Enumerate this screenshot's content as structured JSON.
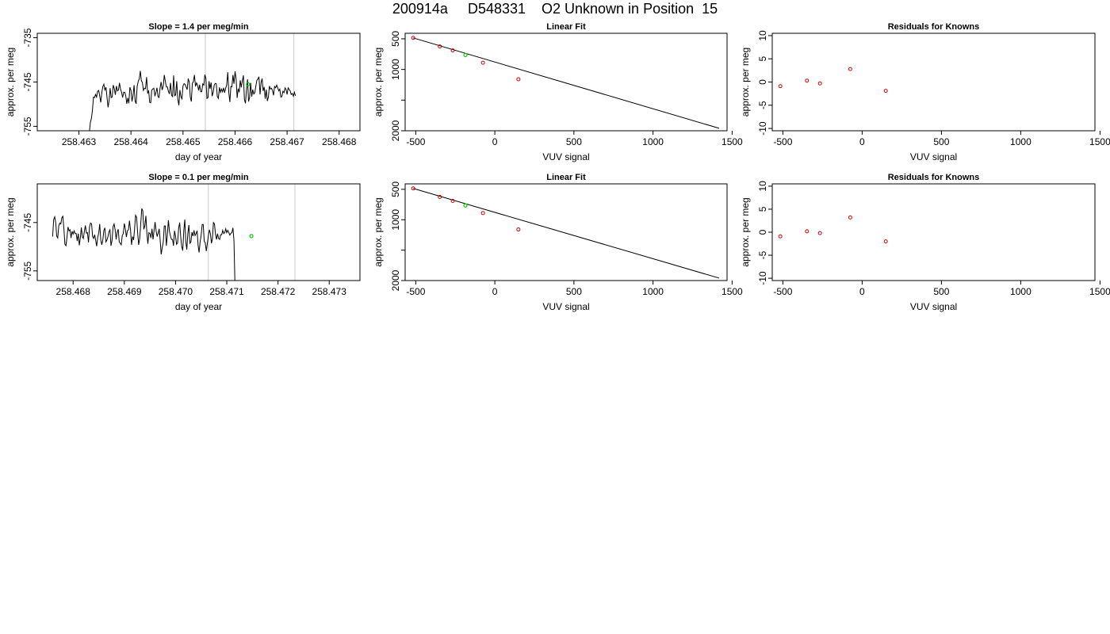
{
  "page": {
    "title": "200914a     D548331    O2 Unknown in Position  15"
  },
  "chart_data": [
    {
      "type": "line",
      "title": "Slope =  1.4  per meg/min",
      "xlabel": "day of year",
      "ylabel": "approx. per meg",
      "xlim": [
        258.4622,
        258.4684
      ],
      "ylim": [
        -756,
        -734
      ],
      "x_ticks": [
        258.463,
        258.464,
        258.465,
        258.466,
        258.467,
        258.468
      ],
      "x_tick_labels": [
        "258.463",
        "258.464",
        "258.465",
        "258.466",
        "258.467",
        "258.468"
      ],
      "y_ticks": [
        -755,
        -745,
        -735
      ],
      "y_tick_labels": [
        "-755",
        "-745",
        "-735"
      ],
      "vlines": [
        258.46543,
        258.46713
      ],
      "series": [
        {
          "x_start": 258.4632,
          "x_step": 2e-05,
          "values": [
            -756.5,
            -754.1,
            -753.2,
            -751.4,
            -748.4,
            -748.5,
            -747.8,
            -748.4,
            -747.1,
            -746.9,
            -748.2,
            -749.6,
            -747.4,
            -746.0,
            -745.5,
            -746.8,
            -746.2,
            -748.5,
            -750.7,
            -749.2,
            -746.4,
            -748.5,
            -748.4,
            -745.7,
            -746.5,
            -747.9,
            -745.9,
            -747.0,
            -746.8,
            -745.2,
            -746.6,
            -747.3,
            -748.5,
            -747.3,
            -747.3,
            -748.1,
            -749.9,
            -748.6,
            -749.8,
            -746.2,
            -746.9,
            -749.4,
            -748.0,
            -745.7,
            -749.3,
            -749.9,
            -746.0,
            -744.8,
            -744.3,
            -742.5,
            -744.7,
            -745.1,
            -746.9,
            -746.4,
            -746.5,
            -743.9,
            -747.6,
            -746.9,
            -749.6,
            -749.7,
            -746.8,
            -746.6,
            -746.4,
            -748.2,
            -747.3,
            -746.3,
            -748.3,
            -748.5,
            -746.3,
            -745.0,
            -746.8,
            -745.9,
            -743.4,
            -744.8,
            -746.1,
            -746.1,
            -747.1,
            -747.7,
            -745.2,
            -748.0,
            -748.3,
            -743.5,
            -748.1,
            -747.9,
            -744.8,
            -748.8,
            -750.3,
            -746.8,
            -748.3,
            -748.8,
            -745.9,
            -745.4,
            -745.5,
            -746.1,
            -746.7,
            -744.2,
            -745.0,
            -748.4,
            -749.4,
            -745.3,
            -744.9,
            -743.4,
            -746.0,
            -745.2,
            -745.7,
            -746.9,
            -745.6,
            -747.2,
            -747.2,
            -745.4,
            -745.7,
            -743.3,
            -744.2,
            -748.7,
            -748.5,
            -744.8,
            -746.5,
            -745.1,
            -748.2,
            -747.3,
            -745.7,
            -745.3,
            -745.4,
            -748.3,
            -748.7,
            -746.2,
            -747.3,
            -746.6,
            -747.2,
            -746.3,
            -747.4,
            -746.4,
            -745.7,
            -742.8,
            -747.4,
            -749.5,
            -746.0,
            -746.1,
            -743.4,
            -745.4,
            -742.6,
            -744.3,
            -748.6,
            -746.5,
            -747.3,
            -744.6,
            -746.2,
            -744.8,
            -743.5,
            -749.0,
            -749.8,
            -746.6,
            -744.4,
            -749.4,
            -748.5,
            -745.2,
            -748.3,
            -746.7,
            -747.7,
            -747.4,
            -745.9,
            -744.6,
            -744.3,
            -743.8,
            -747.8,
            -745.1,
            -744.2,
            -747.0,
            -746.1,
            -748.8,
            -746.7,
            -749.3,
            -748.4,
            -745.9,
            -746.6,
            -746.4,
            -746.9,
            -748.0,
            -746.0,
            -746.3,
            -745.7,
            -746.3,
            -747.0,
            -746.6,
            -748.4,
            -748.3,
            -747.1,
            -747.4,
            -746.3,
            -746.7,
            -747.8,
            -746.3,
            -746.7,
            -747.0,
            -747.8,
            -747.6,
            -748.2,
            -747.3,
            -748.1
          ]
        }
      ],
      "marker": {
        "x": 258.46625,
        "y": -745.5,
        "color": "#00cc00"
      }
    },
    {
      "type": "scatter",
      "title": "Linear Fit",
      "xlabel": "VUV signal",
      "ylabel": "approx. per meg",
      "xlim": [
        -567,
        1468
      ],
      "ylim": [
        -2000,
        -410
      ],
      "x_ticks": [
        -500,
        0,
        500,
        1000,
        1500
      ],
      "x_tick_labels": [
        "-500",
        "0",
        "500",
        "1000",
        "1500"
      ],
      "y_ticks": [
        -2000,
        -1500,
        -1000,
        -500
      ],
      "y_tick_labels": [
        "2000",
        "",
        "1000",
        "500"
      ],
      "points": {
        "x": [
          -516,
          -348,
          -266,
          -75,
          149
        ],
        "y": [
          -485,
          -625,
          -690,
          -890,
          -1160
        ],
        "color": "#cc0000"
      },
      "unknown_point": {
        "x": -186,
        "y": -765,
        "color": "#00cc00"
      },
      "fit_line": {
        "x": [
          -516,
          1418
        ],
        "y": [
          -485,
          -1960
        ]
      }
    },
    {
      "type": "scatter",
      "title": "Residuals for Knowns",
      "xlabel": "VUV signal",
      "ylabel": "approx. per meg",
      "xlim": [
        -567,
        1468
      ],
      "ylim": [
        -10.5,
        10.5
      ],
      "x_ticks": [
        -500,
        0,
        500,
        1000,
        1500
      ],
      "x_tick_labels": [
        "-500",
        "0",
        "500",
        "1000",
        "1500"
      ],
      "y_ticks": [
        -10,
        -5,
        0,
        5,
        10
      ],
      "y_tick_labels": [
        "-10",
        "-5",
        "0",
        "5",
        "10"
      ],
      "points": {
        "x": [
          -516,
          -348,
          -266,
          -75,
          149
        ],
        "y": [
          -0.9,
          0.3,
          -0.3,
          2.8,
          -1.9
        ],
        "color": "#cc0000"
      }
    },
    {
      "type": "line",
      "title": "Slope =  0.1  per meg/min",
      "xlabel": "day of year",
      "ylabel": "approx. per meg",
      "xlim": [
        258.4673,
        258.4736
      ],
      "ylim": [
        -757,
        -737
      ],
      "x_ticks": [
        258.468,
        258.469,
        258.47,
        258.471,
        258.472,
        258.473
      ],
      "x_tick_labels": [
        "258.468",
        "258.469",
        "258.470",
        "258.471",
        "258.472",
        "258.473"
      ],
      "y_ticks": [
        -755,
        -745
      ],
      "y_tick_labels": [
        "-755",
        "-745"
      ],
      "vlines": [
        258.47064,
        258.47233
      ],
      "series": [
        {
          "x_start": 258.4676,
          "x_step": 2e-05,
          "values": [
            -747.9,
            -744.4,
            -743.8,
            -745.0,
            -747.8,
            -748.2,
            -745.7,
            -745.1,
            -745.3,
            -744.0,
            -743.7,
            -746.3,
            -749.5,
            -749.8,
            -748.0,
            -745.9,
            -746.7,
            -746.5,
            -748.2,
            -746.8,
            -747.4,
            -746.7,
            -747.3,
            -747.3,
            -748.8,
            -747.3,
            -749.7,
            -748.2,
            -746.0,
            -748.0,
            -748.3,
            -746.8,
            -745.6,
            -747.2,
            -747.1,
            -749.1,
            -745.9,
            -745.1,
            -745.3,
            -747.9,
            -748.3,
            -747.5,
            -748.6,
            -749.9,
            -748.1,
            -747.2,
            -745.3,
            -748.6,
            -749.6,
            -748.6,
            -746.6,
            -746.1,
            -749.0,
            -748.6,
            -747.9,
            -746.9,
            -746.5,
            -749.8,
            -748.7,
            -745.9,
            -745.3,
            -746.5,
            -748.5,
            -747.0,
            -746.4,
            -749.0,
            -749.3,
            -749.6,
            -747.7,
            -747.3,
            -745.2,
            -746.3,
            -748.0,
            -746.7,
            -746.5,
            -744.6,
            -746.5,
            -749.6,
            -747.9,
            -748.6,
            -746.4,
            -743.5,
            -743.9,
            -747.1,
            -749.6,
            -748.3,
            -745.3,
            -742.1,
            -742.6,
            -746.4,
            -745.7,
            -743.6,
            -747.3,
            -749.4,
            -747.1,
            -747.3,
            -748.2,
            -746.3,
            -748.5,
            -746.7,
            -744.9,
            -746.7,
            -747.9,
            -747.2,
            -746.3,
            -748.6,
            -751.6,
            -750.2,
            -749.1,
            -745.7,
            -745.7,
            -749.8,
            -747.5,
            -744.5,
            -746.8,
            -747.8,
            -748.5,
            -748.5,
            -749.8,
            -746.7,
            -747.8,
            -749.5,
            -749.2,
            -746.2,
            -745.0,
            -747.9,
            -750.0,
            -750.8,
            -746.7,
            -744.4,
            -748.9,
            -750.6,
            -747.3,
            -745.5,
            -749.3,
            -749.0,
            -747.0,
            -747.8,
            -746.6,
            -747.7,
            -747.3,
            -746.7,
            -749.8,
            -751.2,
            -749.0,
            -747.6,
            -745.4,
            -745.4,
            -748.9,
            -749.2,
            -750.9,
            -749.4,
            -747.7,
            -746.5,
            -747.3,
            -749.3,
            -748.4,
            -745.0,
            -745.3,
            -747.4,
            -748.5,
            -747.3,
            -748.3,
            -748.5,
            -747.5,
            -747.5,
            -746.6,
            -747.3,
            -747.1,
            -746.3,
            -747.1,
            -746.6,
            -747.1,
            -747.6,
            -747.2,
            -747.1,
            -746.1,
            -748.8,
            -758.2
          ]
        }
      ],
      "marker": {
        "x": 258.47148,
        "y": -747.8,
        "color": "#00cc00"
      }
    },
    {
      "type": "scatter",
      "title": "Linear Fit",
      "xlabel": "VUV signal",
      "ylabel": "approx. per meg",
      "xlim": [
        -567,
        1468
      ],
      "ylim": [
        -2000,
        -410
      ],
      "x_ticks": [
        -500,
        0,
        500,
        1000,
        1500
      ],
      "x_tick_labels": [
        "-500",
        "0",
        "500",
        "1000",
        "1500"
      ],
      "y_ticks": [
        -2000,
        -1500,
        -1000,
        -500
      ],
      "y_tick_labels": [
        "2000",
        "",
        "1000",
        "500"
      ],
      "points": {
        "x": [
          -516,
          -348,
          -266,
          -75,
          149
        ],
        "y": [
          -485,
          -625,
          -690,
          -890,
          -1160
        ],
        "color": "#cc0000"
      },
      "unknown_point": {
        "x": -186,
        "y": -765,
        "color": "#00cc00"
      },
      "fit_line": {
        "x": [
          -516,
          1418
        ],
        "y": [
          -485,
          -1960
        ]
      }
    },
    {
      "type": "scatter",
      "title": "Residuals for Knowns",
      "xlabel": "VUV signal",
      "ylabel": "approx. per meg",
      "xlim": [
        -567,
        1468
      ],
      "ylim": [
        -10.5,
        10.5
      ],
      "x_ticks": [
        -500,
        0,
        500,
        1000,
        1500
      ],
      "x_tick_labels": [
        "-500",
        "0",
        "500",
        "1000",
        "1500"
      ],
      "y_ticks": [
        -10,
        -5,
        0,
        5,
        10
      ],
      "y_tick_labels": [
        "-10",
        "-5",
        "0",
        "5",
        "10"
      ],
      "points": {
        "x": [
          -516,
          -348,
          -266,
          -75,
          149
        ],
        "y": [
          -0.9,
          0.2,
          -0.2,
          3.2,
          -2.0
        ],
        "color": "#cc0000"
      }
    }
  ]
}
